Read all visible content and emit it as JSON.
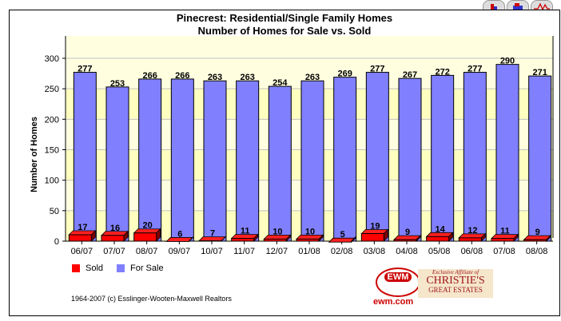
{
  "toolbar": {
    "icons": [
      "bar-chart-icon",
      "stacked-bar-icon",
      "line-chart-icon"
    ]
  },
  "chart_data": {
    "type": "bar",
    "title": "Pinecrest: Residential/Single Family Homes",
    "subtitle": "Number of Homes for Sale vs. Sold",
    "xlabel": "",
    "ylabel": "Number of Homes",
    "ylim": [
      0,
      300
    ],
    "yticks": [
      "0",
      "50",
      "100",
      "150",
      "200",
      "250",
      "300"
    ],
    "categories": [
      "06/07",
      "07/07",
      "08/07",
      "09/07",
      "10/07",
      "11/07",
      "12/07",
      "01/08",
      "02/08",
      "03/08",
      "04/08",
      "05/08",
      "06/08",
      "07/08",
      "08/08"
    ],
    "series": [
      {
        "name": "Sold",
        "color": "#ff0000",
        "values": [
          17,
          16,
          20,
          6,
          7,
          11,
          10,
          10,
          5,
          19,
          9,
          14,
          12,
          11,
          9
        ]
      },
      {
        "name": "For Sale",
        "color": "#8080ff",
        "values": [
          277,
          253,
          266,
          266,
          263,
          263,
          254,
          263,
          269,
          277,
          267,
          272,
          277,
          290,
          271
        ]
      }
    ],
    "legend": "bottom-left",
    "grid": true
  },
  "footer": {
    "copyright": "1964-2007 (c) Esslinger-Wooten-Maxwell Realtors",
    "ewm_logo": "EWM",
    "ewm_url": "ewm.com",
    "affiliate_line1": "Exclusive Affiliate of",
    "affiliate_line2": "CHRISTIE'S",
    "affiliate_line3": "GREAT ESTATES"
  }
}
